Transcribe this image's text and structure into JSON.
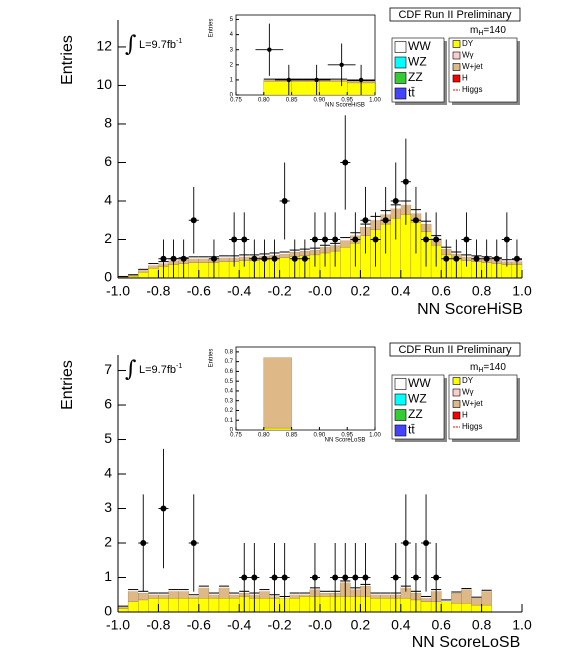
{
  "chart_data": [
    {
      "type": "histogram",
      "title": "CDF Run II Preliminary",
      "xlabel": "NN ScoreHiSB",
      "ylabel": "Entries",
      "luminosity": {
        "integral": "∫",
        "main": "L=9.7fb",
        "sup": "-1"
      },
      "mass_label": {
        "main": "m",
        "sub": "H",
        "rest": "=140"
      },
      "bins": [
        -1,
        -0.95,
        -0.9,
        -0.85,
        -0.8,
        -0.75,
        -0.7,
        -0.65,
        -0.6,
        -0.55,
        -0.5,
        -0.45,
        -0.4,
        -0.35,
        -0.3,
        -0.25,
        -0.2,
        -0.15,
        -0.1,
        -0.05,
        0,
        0.05,
        0.1,
        0.15,
        0.2,
        0.25,
        0.3,
        0.35,
        0.4,
        0.45,
        0.5,
        0.55,
        0.6,
        0.65,
        0.7,
        0.75,
        0.8,
        0.85,
        0.9,
        0.95,
        1
      ],
      "series": [
        {
          "name": "DY",
          "color": "#ffff00",
          "values": [
            0.05,
            0.1,
            0.3,
            0.5,
            0.6,
            0.7,
            0.75,
            0.8,
            0.8,
            0.8,
            0.85,
            0.85,
            0.9,
            0.9,
            0.95,
            1.0,
            1.05,
            1.1,
            1.15,
            1.2,
            1.3,
            1.4,
            1.6,
            1.8,
            2.2,
            2.5,
            2.8,
            3.1,
            3.3,
            2.9,
            2.4,
            1.7,
            1.2,
            1.0,
            0.9,
            0.85,
            0.8,
            0.75,
            0.7,
            0.7
          ]
        },
        {
          "name": "W+jet",
          "color": "#deb887",
          "values": [
            0.02,
            0.05,
            0.1,
            0.15,
            0.15,
            0.2,
            0.2,
            0.2,
            0.2,
            0.2,
            0.2,
            0.2,
            0.2,
            0.2,
            0.2,
            0.2,
            0.2,
            0.25,
            0.25,
            0.25,
            0.3,
            0.3,
            0.35,
            0.4,
            0.45,
            0.5,
            0.5,
            0.5,
            0.5,
            0.45,
            0.4,
            0.35,
            0.3,
            0.25,
            0.2,
            0.2,
            0.2,
            0.2,
            0.15,
            0.15
          ]
        },
        {
          "name": "WW",
          "color": "#ffffff",
          "values": [
            0.01,
            0.02,
            0.05,
            0.1,
            0.1,
            0.1,
            0.1,
            0.1,
            0.1,
            0.1,
            0.1,
            0.1,
            0.1,
            0.1,
            0.1,
            0.1,
            0.1,
            0.1,
            0.1,
            0.1,
            0.1,
            0.1,
            0.15,
            0.15,
            0.15,
            0.2,
            0.2,
            0.2,
            0.2,
            0.2,
            0.15,
            0.15,
            0.1,
            0.1,
            0.1,
            0.1,
            0.1,
            0.1,
            0.1,
            0.1
          ]
        }
      ],
      "data": {
        "x": [
          -0.775,
          -0.725,
          -0.675,
          -0.625,
          -0.525,
          -0.425,
          -0.375,
          -0.325,
          -0.275,
          -0.225,
          -0.175,
          -0.125,
          -0.075,
          -0.025,
          0.025,
          0.075,
          0.125,
          0.175,
          0.225,
          0.275,
          0.325,
          0.375,
          0.425,
          0.475,
          0.525,
          0.575,
          0.625,
          0.675,
          0.725,
          0.775,
          0.825,
          0.875,
          0.925,
          0.975
        ],
        "values": [
          1,
          1,
          1,
          3,
          1,
          2,
          2,
          1,
          1,
          1,
          4,
          1,
          1,
          2,
          2,
          2,
          6,
          2,
          3,
          2,
          3,
          4,
          5,
          3,
          2,
          2,
          1,
          1,
          2,
          1,
          1,
          1,
          2,
          1
        ],
        "errors": [
          1,
          1,
          1,
          1.73,
          1,
          1.41,
          1.41,
          1,
          1,
          1,
          2,
          1,
          1,
          1.41,
          1.41,
          1.41,
          2.45,
          1.41,
          1.73,
          1.41,
          1.73,
          2,
          2.24,
          1.73,
          1.41,
          1.41,
          1,
          1,
          1.41,
          1,
          1,
          1,
          1.41,
          1
        ]
      },
      "legend": [
        {
          "name": "WW",
          "color": "#ffffff"
        },
        {
          "name": "WZ",
          "color": "#00ffff"
        },
        {
          "name": "ZZ",
          "color": "#33cc33"
        },
        {
          "name": "tt̄",
          "color": "#4444ff"
        },
        {
          "name": "DY",
          "color": "#ffff00"
        },
        {
          "name": "Wγ",
          "color": "#ffcccc"
        },
        {
          "name": "W+jet",
          "color": "#deb887"
        },
        {
          "name": "H",
          "color": "#ff0000"
        },
        {
          "name": "Higgs",
          "color": "#ff0000",
          "marker": "line"
        }
      ],
      "xlim": [
        -1,
        1
      ],
      "ylim": [
        0,
        13.4
      ],
      "xticks": [
        {
          "value": -1,
          "label": "-1.0"
        },
        -0.8,
        -0.6,
        -0.4,
        -0.2,
        {
          "value": 0,
          "label": "-0.0"
        },
        0.2,
        0.4,
        0.6,
        0.8,
        {
          "value": 1,
          "label": "1.0"
        }
      ],
      "yticks": [
        0,
        2,
        4,
        6,
        8,
        10,
        12
      ]
    },
    {
      "type": "histogram",
      "title": "CDF Run II Preliminary",
      "xlabel": "NN ScoreLoSB",
      "ylabel": "Entries",
      "luminosity": {
        "integral": "∫",
        "main": "L=9.7fb",
        "sup": "-1"
      },
      "mass_label": {
        "main": "m",
        "sub": "H",
        "rest": "=140"
      },
      "bins": [
        -1,
        -0.95,
        -0.9,
        -0.85,
        -0.8,
        -0.75,
        -0.7,
        -0.65,
        -0.6,
        -0.55,
        -0.5,
        -0.45,
        -0.4,
        -0.35,
        -0.3,
        -0.25,
        -0.2,
        -0.15,
        -0.1,
        -0.05,
        0,
        0.05,
        0.1,
        0.15,
        0.2,
        0.25,
        0.3,
        0.35,
        0.4,
        0.45,
        0.5,
        0.55,
        0.6,
        0.65,
        0.7,
        0.75,
        0.8,
        0.85,
        0.9,
        0.95,
        1
      ],
      "series": [
        {
          "name": "DY",
          "color": "#ffff00",
          "values": [
            0.1,
            0.3,
            0.35,
            0.4,
            0.4,
            0.4,
            0.4,
            0.4,
            0.4,
            0.4,
            0.4,
            0.4,
            0.45,
            0.4,
            0.4,
            0.4,
            0.4,
            0.4,
            0.45,
            0.45,
            0.45,
            0.45,
            0.45,
            0.45,
            0.45,
            0.4,
            0.4,
            0.4,
            0.4,
            0.35,
            0.3,
            0.3,
            0.3,
            0.25,
            0.25,
            0.2,
            0.2,
            0,
            0,
            0
          ]
        },
        {
          "name": "W+jet",
          "color": "#deb887",
          "values": [
            0.05,
            0.3,
            0.2,
            0.1,
            0.1,
            0.2,
            0.2,
            0.05,
            0.3,
            0.1,
            0.3,
            0.1,
            0.1,
            0.1,
            0.2,
            0.05,
            0,
            0.1,
            0.05,
            0.2,
            0.1,
            0.1,
            0.4,
            0.2,
            0.3,
            0.1,
            0.1,
            0.1,
            0.3,
            0.2,
            0.1,
            0.3,
            0,
            0.3,
            0.4,
            0.2,
            0.4,
            0,
            0,
            0
          ]
        },
        {
          "name": "WW",
          "color": "#ffffff",
          "values": [
            0.02,
            0.05,
            0.05,
            0.05,
            0.05,
            0.05,
            0.05,
            0.05,
            0.05,
            0.05,
            0.05,
            0.05,
            0.05,
            0.05,
            0.05,
            0.05,
            0.05,
            0.05,
            0.05,
            0.05,
            0.05,
            0.05,
            0.05,
            0.05,
            0.05,
            0.05,
            0.05,
            0.05,
            0.05,
            0.05,
            0.05,
            0.05,
            0.05,
            0.03,
            0.03,
            0.03,
            0.03,
            0,
            0,
            0
          ]
        }
      ],
      "data": {
        "x": [
          -0.875,
          -0.775,
          -0.625,
          -0.375,
          -0.325,
          -0.225,
          -0.175,
          -0.025,
          0.075,
          0.125,
          0.175,
          0.225,
          0.375,
          0.425,
          0.475,
          0.525,
          0.575
        ],
        "values": [
          2,
          3,
          2,
          1,
          1,
          1,
          1,
          1,
          1,
          1,
          1,
          1,
          1,
          2,
          1,
          2,
          1
        ],
        "errors": [
          1.41,
          1.73,
          1.41,
          1,
          1,
          1,
          1,
          1,
          1,
          1,
          1,
          1,
          1,
          1.41,
          1,
          1.41,
          1
        ]
      },
      "legend": [
        {
          "name": "WW",
          "color": "#ffffff"
        },
        {
          "name": "WZ",
          "color": "#00ffff"
        },
        {
          "name": "ZZ",
          "color": "#33cc33"
        },
        {
          "name": "tt̄",
          "color": "#4444ff"
        },
        {
          "name": "DY",
          "color": "#ffff00"
        },
        {
          "name": "Wγ",
          "color": "#ffcccc"
        },
        {
          "name": "W+jet",
          "color": "#deb887"
        },
        {
          "name": "H",
          "color": "#ff0000"
        },
        {
          "name": "Higgs",
          "color": "#ff0000",
          "marker": "line"
        }
      ],
      "xlim": [
        -1,
        1
      ],
      "ylim": [
        0,
        7.45
      ],
      "xticks": [
        {
          "value": -1,
          "label": "-1.0"
        },
        -0.8,
        -0.6,
        -0.4,
        -0.2,
        {
          "value": 0,
          "label": "-0.0"
        },
        0.2,
        0.4,
        0.6,
        0.8,
        {
          "value": 1,
          "label": "1.0"
        }
      ],
      "yticks": [
        0,
        1,
        2,
        3,
        4,
        5,
        6,
        7
      ]
    },
    {
      "type": "histogram",
      "xlabel": "NN ScoreHiSB",
      "ylabel": "Entries",
      "bins": [
        0.75,
        0.8,
        0.85,
        0.9,
        0.95,
        1
      ],
      "series": [
        {
          "name": "DY",
          "color": "#ffff00",
          "values": [
            0,
            0.9,
            0.9,
            0.9,
            0.8
          ]
        },
        {
          "name": "W+jet",
          "color": "#deb887",
          "values": [
            0,
            0.1,
            0.1,
            0.1,
            0.1
          ]
        },
        {
          "name": "WW",
          "color": "#ffffff",
          "values": [
            0,
            0.05,
            0.05,
            0.05,
            0.05
          ]
        }
      ],
      "data": {
        "x": [
          0.81,
          0.845,
          0.895,
          0.94,
          0.975
        ],
        "values": [
          3,
          1,
          1,
          2,
          1
        ],
        "errors": [
          1.73,
          1,
          1,
          1.41,
          1
        ]
      },
      "xlim": [
        0.75,
        1
      ],
      "ylim": [
        0,
        5.3
      ],
      "xticks": [
        0.75,
        {
          "value": 0.8,
          "label": "0.80"
        },
        0.85,
        {
          "value": 0.9,
          "label": "0.90"
        },
        0.95,
        {
          "value": 1,
          "label": "1.00"
        }
      ],
      "yticks": [
        0,
        1,
        2,
        3,
        4,
        5
      ]
    },
    {
      "type": "histogram",
      "xlabel": "NN ScoreLoSB",
      "ylabel": "Entries",
      "bins": [
        0.75,
        0.8,
        0.85,
        0.9,
        0.95,
        1
      ],
      "series": [
        {
          "name": "DY",
          "color": "#ffff00",
          "values": [
            0,
            0.02,
            0,
            0,
            0
          ]
        },
        {
          "name": "W+jet",
          "color": "#deb887",
          "values": [
            0,
            0.72,
            0,
            0,
            0
          ]
        },
        {
          "name": "WW",
          "color": "#ffffff",
          "values": [
            0,
            0,
            0,
            0,
            0
          ]
        }
      ],
      "xlim": [
        0.75,
        1
      ],
      "ylim": [
        0,
        0.85
      ],
      "xticks": [
        0.75,
        {
          "value": 0.8,
          "label": "0.80"
        },
        0.85,
        {
          "value": 0.9,
          "label": "0.90"
        },
        0.95,
        {
          "value": 1,
          "label": "1.00"
        }
      ],
      "yticks": [
        0,
        0.1,
        0.2,
        0.3,
        0.4,
        0.5,
        0.6,
        0.7,
        0.8
      ]
    }
  ]
}
